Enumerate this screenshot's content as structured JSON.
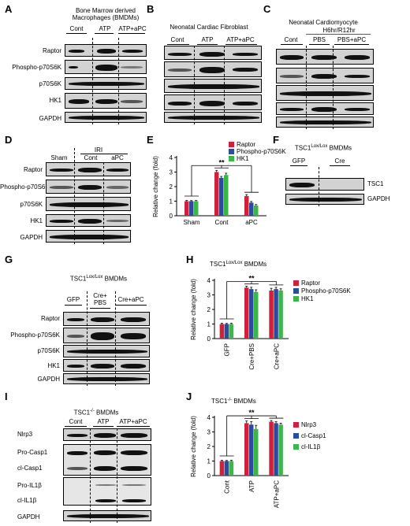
{
  "panels": {
    "A": {
      "letter": "A",
      "title": "Bone Marrow derived\nMacrophages (BMDMs)",
      "groups": [
        "Cont",
        "ATP",
        "ATP+aPC"
      ],
      "rows": [
        "Raptor",
        "Phospho-p70S6K",
        "p70S6K",
        "HK1",
        "GAPDH"
      ]
    },
    "B": {
      "letter": "B",
      "title": "Neonatal Cardiac Fibroblast",
      "groups": [
        "Cont",
        "ATP",
        "ATP+aPC"
      ]
    },
    "C": {
      "letter": "C",
      "title": "Neonatal Cardiomyocyte",
      "subtitle": "H6hr/R12hr",
      "groups": [
        "Cont",
        "PBS",
        "PBS+aPC"
      ]
    },
    "D": {
      "letter": "D",
      "groups": [
        "Sham",
        "Cont",
        "aPC"
      ],
      "super": "IRI",
      "rows": [
        "Raptor",
        "Phospho-p70S6K",
        "p70S6K",
        "HK1",
        "GAPDH"
      ]
    },
    "E": {
      "letter": "E"
    },
    "F": {
      "letter": "F",
      "title_main": "TSC1",
      "title_sup": "Lox/Lox",
      "title_tail": " BMDMs",
      "groups": [
        "GFP",
        "Cre"
      ],
      "rows": [
        "TSC1",
        "GAPDH"
      ]
    },
    "G": {
      "letter": "G",
      "title_main": "TSC1",
      "title_sup": "Lox/Lox",
      "title_tail": " BMDMs",
      "groups": [
        "GFP",
        "Cre+\nPBS",
        "Cre+aPC"
      ],
      "rows": [
        "Raptor",
        "Phospho-p70S6K",
        "p70S6K",
        "HK1",
        "GAPDH"
      ]
    },
    "H": {
      "letter": "H"
    },
    "I": {
      "letter": "I",
      "title_main": "TSC1",
      "title_sup": "-/-",
      "title_tail": " BMDMs",
      "groups": [
        "Cont",
        "ATP",
        "ATP+aPC"
      ],
      "rows": [
        "Nlrp3",
        "Pro-Casp1",
        "cl-Casp1",
        "Pro-IL1β",
        "cl-IL1β",
        "GAPDH"
      ]
    },
    "J": {
      "letter": "J"
    }
  },
  "chart_data": [
    {
      "id": "E",
      "type": "bar",
      "title": "",
      "xlabel": "",
      "ylabel": "Relative change (fold)",
      "ylim": [
        0,
        4
      ],
      "yticks": [
        0,
        1,
        2,
        3,
        4
      ],
      "categories": [
        "Sham",
        "Cont",
        "aPC"
      ],
      "series": [
        {
          "name": "Raptor",
          "color": "#d0213a",
          "values": [
            1.0,
            3.0,
            1.35
          ],
          "errors": [
            0.05,
            0.12,
            0.1
          ]
        },
        {
          "name": "Phospho-p70S6K",
          "color": "#2b4c9b",
          "values": [
            1.0,
            2.6,
            0.9
          ],
          "errors": [
            0.04,
            0.1,
            0.08
          ]
        },
        {
          "name": "HK1",
          "color": "#3cb54a",
          "values": [
            1.0,
            2.8,
            0.7
          ],
          "errors": [
            0.05,
            0.12,
            0.07
          ]
        }
      ],
      "annotation": "**",
      "legend": "top-right",
      "grid": false,
      "rotated_ticks": false
    },
    {
      "id": "H",
      "type": "bar",
      "title": "TSC1",
      "title_sup": "Lox/Lox",
      "title_tail": " BMDMs",
      "xlabel": "",
      "ylabel": "Relative change (fold)",
      "ylim": [
        0,
        4
      ],
      "yticks": [
        0,
        1,
        2,
        3,
        4
      ],
      "categories": [
        "GFP",
        "Cre+PBS",
        "Cre+aPC"
      ],
      "series": [
        {
          "name": "Raptor",
          "color": "#d0213a",
          "values": [
            1.0,
            3.5,
            3.3
          ],
          "errors": [
            0.05,
            0.1,
            0.15
          ]
        },
        {
          "name": "Phospho-p70S6K",
          "color": "#2b4c9b",
          "values": [
            1.0,
            3.4,
            3.4
          ],
          "errors": [
            0.04,
            0.12,
            0.12
          ]
        },
        {
          "name": "HK1",
          "color": "#3cb54a",
          "values": [
            1.0,
            3.2,
            3.3
          ],
          "errors": [
            0.05,
            0.15,
            0.12
          ]
        }
      ],
      "annotation": "**",
      "legend": "top-right",
      "grid": false,
      "rotated_ticks": true
    },
    {
      "id": "J",
      "type": "bar",
      "title": "TSC1",
      "title_sup": "-/-",
      "title_tail": " BMDMs",
      "xlabel": "",
      "ylabel": "Relative change (fold)",
      "ylim": [
        0,
        4
      ],
      "yticks": [
        0,
        1,
        2,
        3,
        4
      ],
      "categories": [
        "Cont",
        "ATP",
        "ATP+aPC"
      ],
      "series": [
        {
          "name": "Nlrp3",
          "color": "#d0213a",
          "values": [
            1.0,
            3.6,
            3.7
          ],
          "errors": [
            0.05,
            0.15,
            0.08
          ]
        },
        {
          "name": "cl-Casp1",
          "color": "#2b4c9b",
          "values": [
            1.0,
            3.5,
            3.6
          ],
          "errors": [
            0.04,
            0.2,
            0.1
          ]
        },
        {
          "name": "cl-IL1β",
          "color": "#3cb54a",
          "values": [
            1.0,
            3.2,
            3.5
          ],
          "errors": [
            0.05,
            0.25,
            0.1
          ]
        }
      ],
      "annotation": "**",
      "legend": "top-right",
      "grid": false,
      "rotated_ticks": true
    }
  ]
}
